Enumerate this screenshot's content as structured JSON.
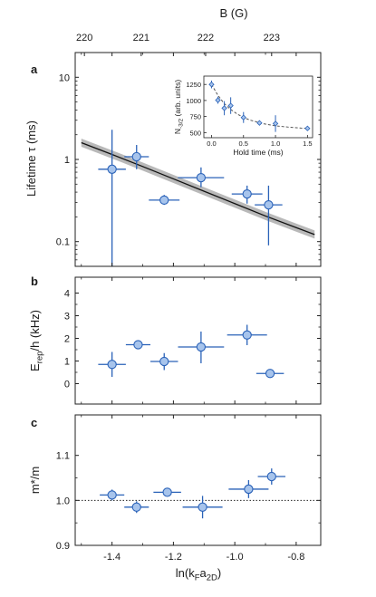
{
  "chart_data": {
    "type": "scatter",
    "shared_x": {
      "label": "ln(k",
      "label_sub": "F",
      "label_mid": "a",
      "label_sub2": "2D",
      "label_end": ")",
      "lim": [
        -1.52,
        -0.72
      ],
      "ticks": [
        -1.4,
        -1.2,
        -1.0,
        -0.8
      ],
      "tick_labels": [
        "-1.4",
        "-1.2",
        "-1.0",
        "-0.8"
      ]
    },
    "top_axis": {
      "label": "B (G)",
      "ticks_x": [
        -1.49,
        -1.305,
        -1.095,
        -0.88
      ],
      "tick_labels": [
        "220",
        "221",
        "222",
        "223"
      ]
    },
    "panels": [
      {
        "letter": "a",
        "scale": "log",
        "ylim": [
          0.05,
          20
        ],
        "ylabel": "Lifetime τ (ms)",
        "yticks": [
          0.1,
          1,
          10
        ],
        "ytick_labels": [
          "0.1",
          "1",
          "10"
        ],
        "points": [
          {
            "x": -1.4,
            "y": 0.76,
            "xerr": 0.045,
            "ylo": 0.05,
            "yhi": 2.3
          },
          {
            "x": -1.32,
            "y": 1.08,
            "xerr": 0.04,
            "ylo": 0.76,
            "yhi": 1.5
          },
          {
            "x": -1.23,
            "y": 0.32,
            "xerr": 0.05,
            "ylo": 0.28,
            "yhi": 0.37
          },
          {
            "x": -1.11,
            "y": 0.6,
            "xerr": 0.075,
            "ylo": 0.46,
            "yhi": 0.8
          },
          {
            "x": -0.96,
            "y": 0.38,
            "xerr": 0.05,
            "ylo": 0.29,
            "yhi": 0.48
          },
          {
            "x": -0.89,
            "y": 0.28,
            "xerr": 0.045,
            "ylo": 0.09,
            "yhi": 0.48
          }
        ],
        "fit_line": {
          "x": [
            -1.5,
            -1.4,
            -1.3,
            -1.2,
            -1.1,
            -1.0,
            -0.9,
            -0.8,
            -0.74
          ],
          "y": [
            1.6,
            1.15,
            0.82,
            0.58,
            0.41,
            0.29,
            0.205,
            0.148,
            0.122
          ]
        },
        "inset": {
          "xlabel": "Hold time (ms)",
          "ylabel": "N",
          "ylabel_sub": "-3/2",
          "ylabel_end": " (arb. units)",
          "xlim": [
            -0.12,
            1.58
          ],
          "ylim": [
            420,
            1380
          ],
          "xticks": [
            0,
            0.5,
            1,
            1.5
          ],
          "xtick_labels": [
            "0.0",
            "0.5",
            "1.0",
            "1.5"
          ],
          "yticks": [
            500,
            750,
            1000,
            1250
          ],
          "ytick_labels": [
            "500",
            "750",
            "1000",
            "1250"
          ],
          "points": [
            {
              "x": 0.0,
              "y": 1250,
              "err": 60
            },
            {
              "x": 0.1,
              "y": 1005,
              "err": 55
            },
            {
              "x": 0.2,
              "y": 880,
              "err": 110
            },
            {
              "x": 0.3,
              "y": 920,
              "err": 130
            },
            {
              "x": 0.5,
              "y": 735,
              "err": 85
            },
            {
              "x": 0.75,
              "y": 650,
              "err": 0
            },
            {
              "x": 1.0,
              "y": 640,
              "err": 130
            },
            {
              "x": 1.5,
              "y": 565,
              "err": 0
            }
          ],
          "fit_line": {
            "x": [
              0.0,
              0.1,
              0.2,
              0.3,
              0.4,
              0.5,
              0.6,
              0.8,
              1.0,
              1.2,
              1.4,
              1.5
            ],
            "y": [
              1250,
              1080,
              950,
              860,
              790,
              735,
              695,
              640,
              605,
              585,
              570,
              565
            ]
          }
        }
      },
      {
        "letter": "b",
        "scale": "linear",
        "ylim": [
          -0.9,
          4.7
        ],
        "ylabel": "E",
        "ylabel_sub": "rep",
        "ylabel_end": "/h (kHz)",
        "yticks": [
          0,
          1,
          2,
          3,
          4
        ],
        "ytick_labels": [
          "0",
          "1",
          "2",
          "3",
          "4"
        ],
        "points": [
          {
            "x": -1.4,
            "y": 0.85,
            "xerr": 0.045,
            "ylo": 0.3,
            "yhi": 1.4
          },
          {
            "x": -1.315,
            "y": 1.72,
            "xerr": 0.04,
            "ylo": 1.6,
            "yhi": 1.85
          },
          {
            "x": -1.23,
            "y": 0.98,
            "xerr": 0.045,
            "ylo": 0.6,
            "yhi": 1.35
          },
          {
            "x": -1.11,
            "y": 1.62,
            "xerr": 0.075,
            "ylo": 0.9,
            "yhi": 2.3
          },
          {
            "x": -0.96,
            "y": 2.15,
            "xerr": 0.065,
            "ylo": 1.7,
            "yhi": 2.6
          },
          {
            "x": -0.885,
            "y": 0.45,
            "xerr": 0.045,
            "ylo": 0.3,
            "yhi": 0.6
          }
        ]
      },
      {
        "letter": "c",
        "scale": "linear",
        "ylim": [
          0.9,
          1.19
        ],
        "ylabel": "m*/m",
        "yticks": [
          0.9,
          1.0,
          1.1
        ],
        "ytick_labels": [
          "0.9",
          "1.0",
          "1.1"
        ],
        "reference_line_y": 1.0,
        "points": [
          {
            "x": -1.4,
            "y": 1.012,
            "xerr": 0.04,
            "ylo": 1.0,
            "yhi": 1.024
          },
          {
            "x": -1.32,
            "y": 0.985,
            "xerr": 0.04,
            "ylo": 0.972,
            "yhi": 0.998
          },
          {
            "x": -1.22,
            "y": 1.018,
            "xerr": 0.045,
            "ylo": 1.011,
            "yhi": 1.025
          },
          {
            "x": -1.105,
            "y": 0.985,
            "xerr": 0.065,
            "ylo": 0.96,
            "yhi": 1.01
          },
          {
            "x": -0.955,
            "y": 1.025,
            "xerr": 0.065,
            "ylo": 1.005,
            "yhi": 1.045
          },
          {
            "x": -0.88,
            "y": 1.053,
            "xerr": 0.045,
            "ylo": 1.035,
            "yhi": 1.071
          }
        ]
      }
    ],
    "colors": {
      "marker_fill": "#a7c4ec",
      "marker_edge": "#2a62b8",
      "errorbar": "#2a62b8",
      "fit_line": "#111111",
      "fit_band": "#b9b9b9",
      "inset_fit": "#555555"
    }
  }
}
